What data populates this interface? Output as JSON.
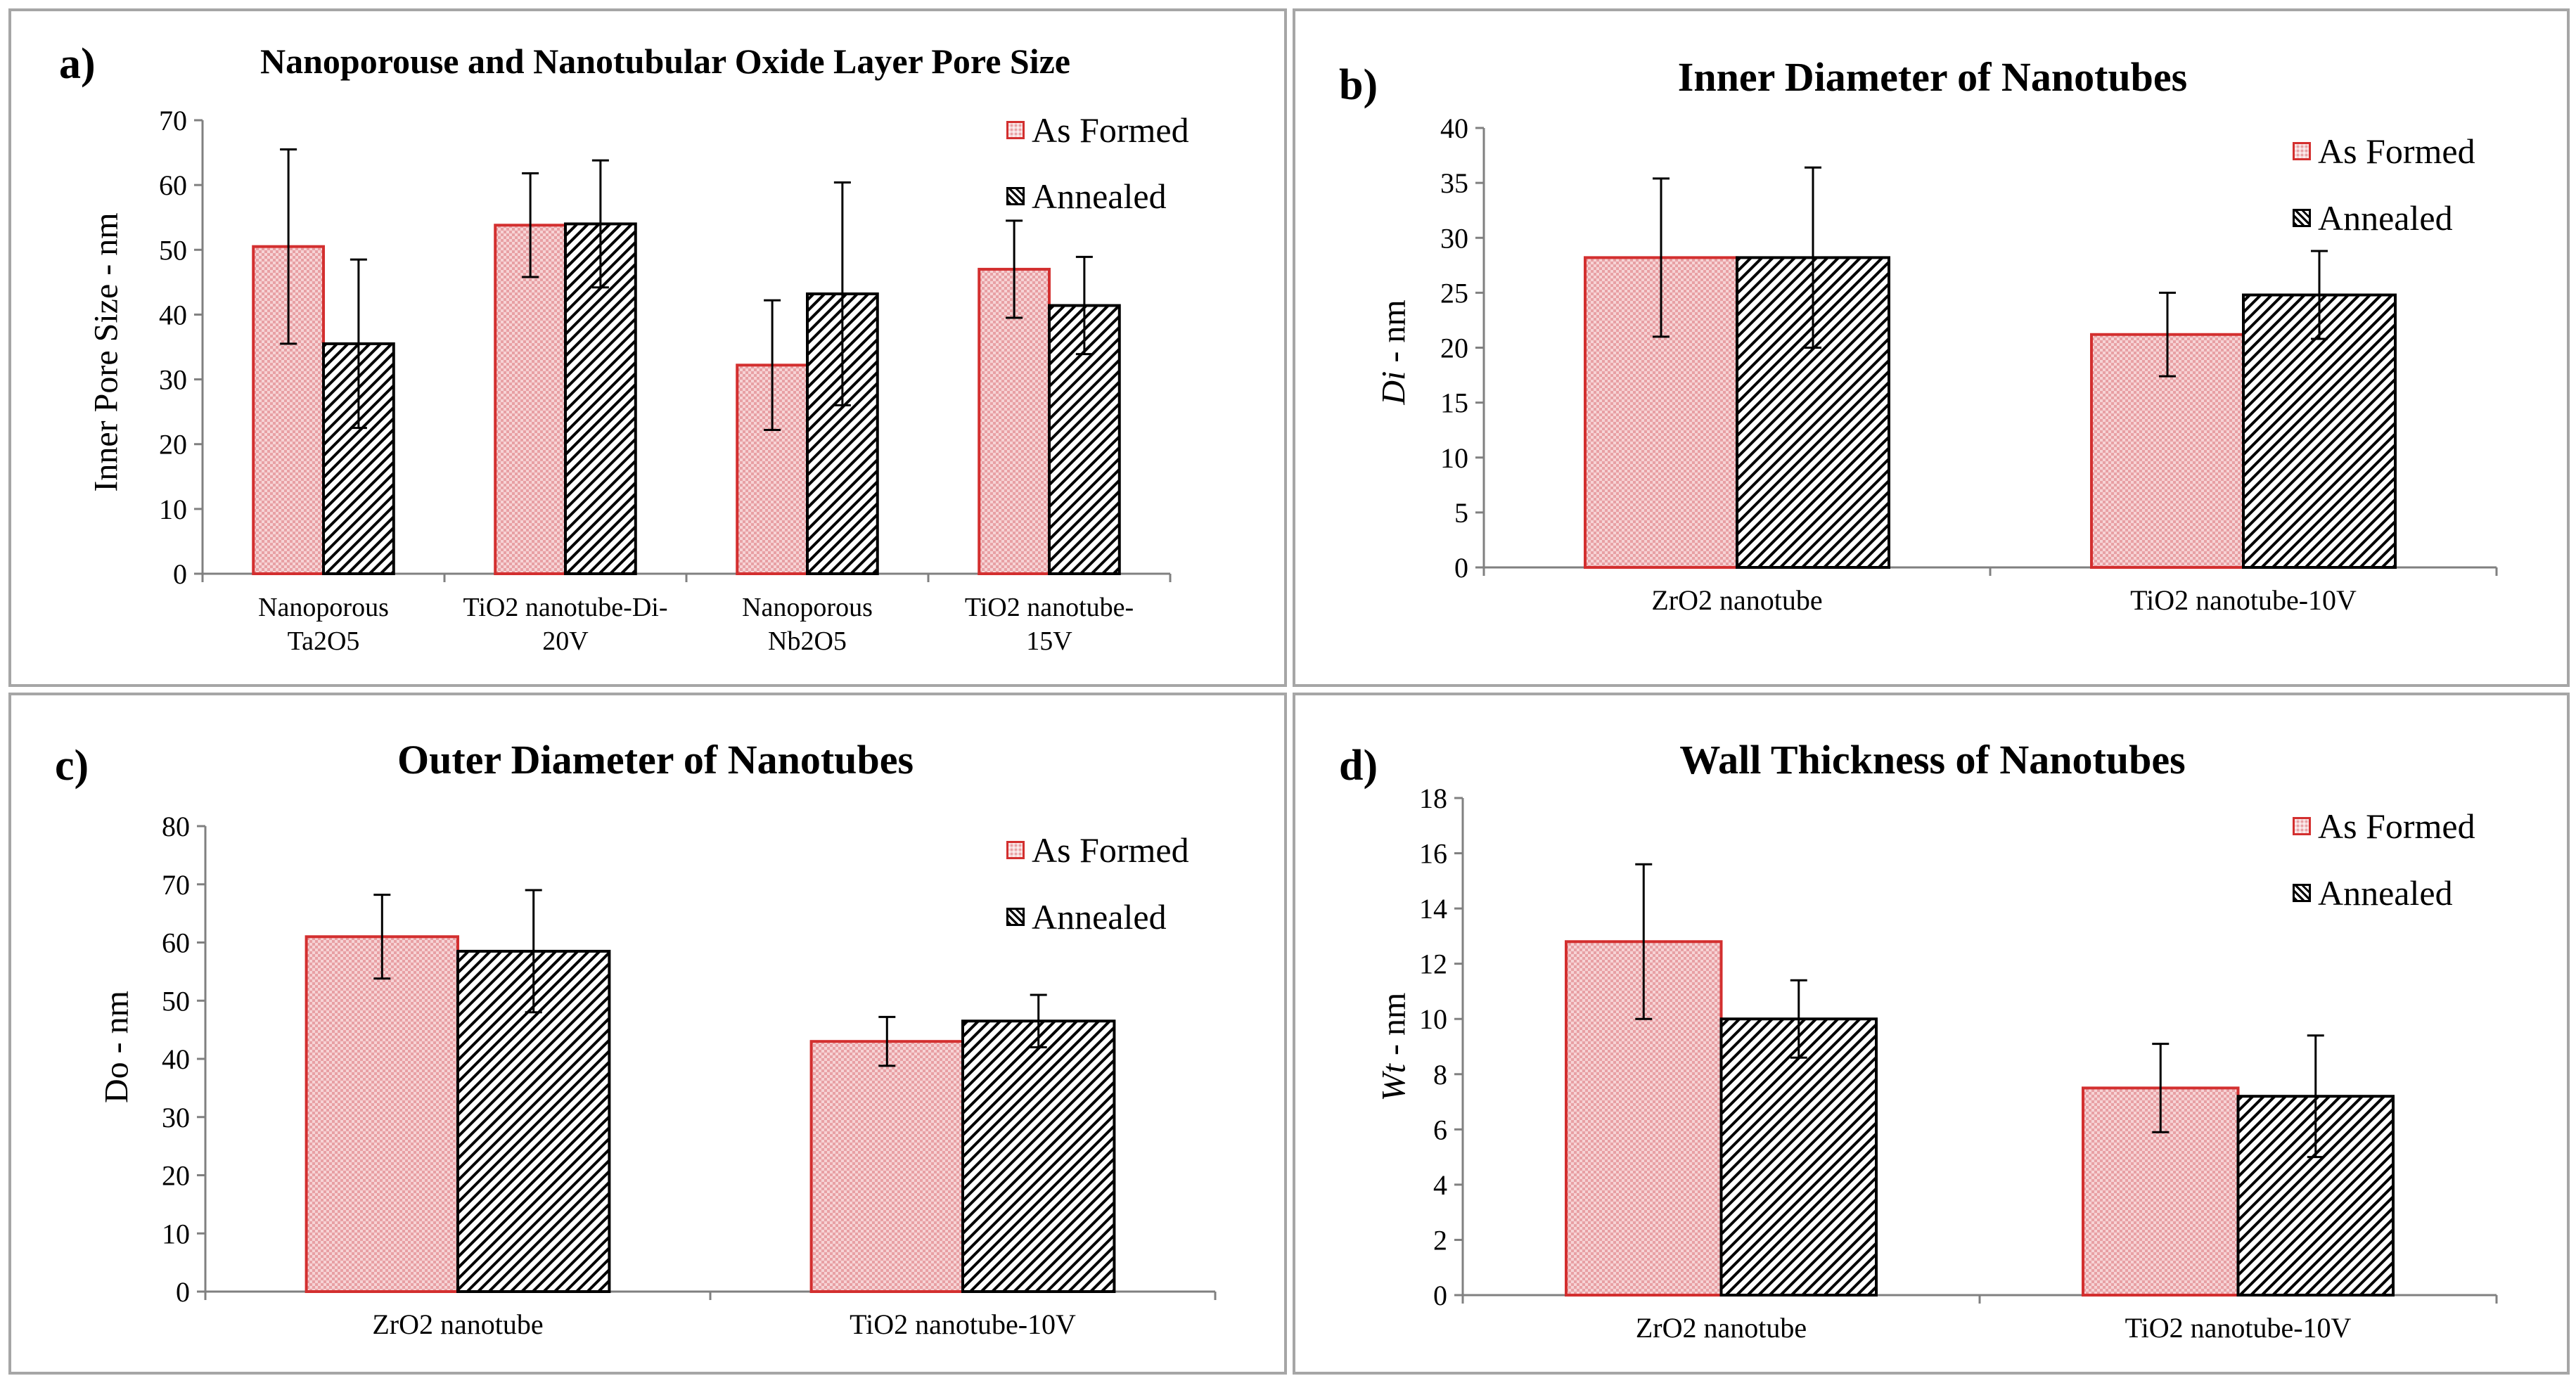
{
  "legend": {
    "formed": "As Formed",
    "annealed": "Annealed"
  },
  "colors": {
    "formed_fill": "#e8a0a4",
    "formed_edge": "#d32f2f",
    "annealed_edge": "#000000",
    "frame": "#a6a6a6",
    "axis": "#808080"
  },
  "chart_data": [
    {
      "type": "bar",
      "panel": "a)",
      "title": "Nanoporouse and Nanotubular Oxide Layer Pore Size",
      "ylabel": "Inner Pore Size - nm",
      "ylim": [
        0,
        70
      ],
      "yticks": [
        0,
        10,
        20,
        30,
        40,
        50,
        60,
        70
      ],
      "categories": [
        [
          "Nanoporous",
          "Ta2O5"
        ],
        [
          "TiO2 nanotube-Di-",
          "20V"
        ],
        [
          "Nanoporous",
          "Nb2O5"
        ],
        [
          "TiO2 nanotube-",
          "15V"
        ]
      ],
      "series": [
        {
          "name": "As Formed",
          "values": [
            50.5,
            53.8,
            32.2,
            47.0
          ],
          "errors": [
            15.0,
            8.0,
            10.0,
            7.5
          ]
        },
        {
          "name": "Annealed",
          "values": [
            35.5,
            54.0,
            43.2,
            41.4
          ],
          "errors": [
            13.0,
            9.8,
            17.2,
            7.5
          ]
        }
      ]
    },
    {
      "type": "bar",
      "panel": "b)",
      "title": "Inner Diameter of Nanotubes",
      "ylabel_italic": "Di",
      "ylabel_rest": " - nm",
      "ylim": [
        0,
        40
      ],
      "yticks": [
        0,
        5,
        10,
        15,
        20,
        25,
        30,
        35,
        40
      ],
      "categories": [
        [
          "ZrO2 nanotube"
        ],
        [
          "TiO2 nanotube-10V"
        ]
      ],
      "series": [
        {
          "name": "As Formed",
          "values": [
            28.2,
            21.2
          ],
          "errors": [
            7.2,
            3.8
          ]
        },
        {
          "name": "Annealed",
          "values": [
            28.2,
            24.8
          ],
          "errors": [
            8.2,
            4.0
          ]
        }
      ]
    },
    {
      "type": "bar",
      "panel": "c)",
      "title": "Outer Diameter of Nanotubes",
      "ylabel": "Do - nm",
      "ylim": [
        0,
        80
      ],
      "yticks": [
        0,
        10,
        20,
        30,
        40,
        50,
        60,
        70,
        80
      ],
      "categories": [
        [
          "ZrO2 nanotube"
        ],
        [
          "TiO2 nanotube-10V"
        ]
      ],
      "series": [
        {
          "name": "As Formed",
          "values": [
            61.0,
            43.0
          ],
          "errors": [
            7.2,
            4.2
          ]
        },
        {
          "name": "Annealed",
          "values": [
            58.5,
            46.5
          ],
          "errors": [
            10.5,
            4.5
          ]
        }
      ]
    },
    {
      "type": "bar",
      "panel": "d)",
      "title": "Wall Thickness of Nanotubes",
      "ylabel_italic": "Wt",
      "ylabel_rest": " - nm",
      "ylim": [
        0,
        18
      ],
      "yticks": [
        0,
        2,
        4,
        6,
        8,
        10,
        12,
        14,
        16,
        18
      ],
      "categories": [
        [
          "ZrO2 nanotube"
        ],
        [
          "TiO2 nanotube-10V"
        ]
      ],
      "series": [
        {
          "name": "As Formed",
          "values": [
            12.8,
            7.5
          ],
          "errors": [
            2.8,
            1.6
          ]
        },
        {
          "name": "Annealed",
          "values": [
            10.0,
            7.2
          ],
          "errors": [
            1.4,
            2.2
          ]
        }
      ]
    }
  ]
}
